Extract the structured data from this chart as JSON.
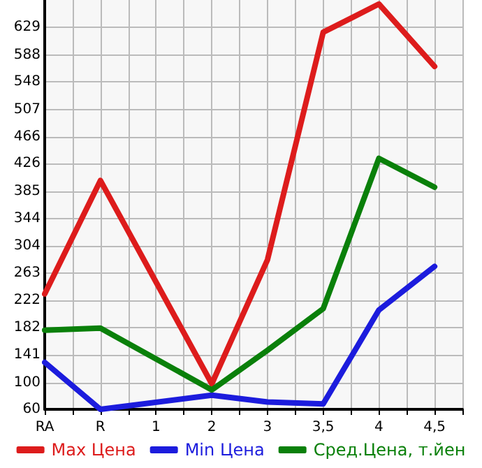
{
  "chart_data": {
    "type": "line",
    "categories": [
      "RA",
      "R",
      "1",
      "2",
      "3",
      "3,5",
      "4",
      "4,5"
    ],
    "series": [
      {
        "name": "Max Цена",
        "color": "#dd1c1c",
        "values": [
          232,
          401,
          null,
          98,
          283,
          622,
          664,
          571
        ]
      },
      {
        "name": "Min Цена",
        "color": "#1c1cdd",
        "values": [
          130,
          60,
          null,
          81,
          71,
          68,
          208,
          273
        ]
      },
      {
        "name": "Сред.Цена, т.йен",
        "color": "#0a800a",
        "values": [
          178,
          181,
          null,
          89,
          148,
          210,
          434,
          391
        ]
      }
    ],
    "ylim": [
      60,
      670
    ],
    "yticks": [
      60,
      100,
      141,
      182,
      222,
      263,
      304,
      344,
      385,
      426,
      466,
      507,
      548,
      588,
      629
    ],
    "grid": true,
    "legend": "bottom",
    "marker": "none",
    "line_style": "solid"
  }
}
